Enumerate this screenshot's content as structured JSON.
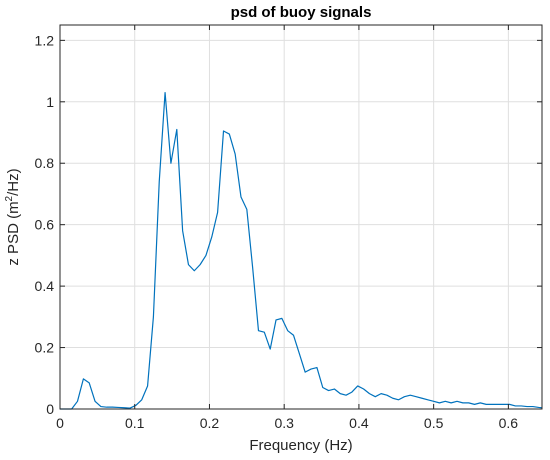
{
  "chart_data": {
    "type": "line",
    "title": "psd of buoy signals",
    "xlabel": "Frequency (Hz)",
    "ylabel": {
      "prefix": "z PSD (m",
      "superscript": "2",
      "suffix": "/Hz)"
    },
    "xlim": [
      0,
      0.645
    ],
    "ylim": [
      0,
      1.25
    ],
    "xticks": [
      0,
      0.1,
      0.2,
      0.3,
      0.4,
      0.5,
      0.6
    ],
    "xtick_labels": [
      "0",
      "0.1",
      "0.2",
      "0.3",
      "0.4",
      "0.5",
      "0.6"
    ],
    "yticks": [
      0,
      0.2,
      0.4,
      0.6,
      0.8,
      1,
      1.2
    ],
    "ytick_labels": [
      "0",
      "0.2",
      "0.4",
      "0.6",
      "0.8",
      "1",
      "1.2"
    ],
    "grid": true,
    "line_color": "#0072BD",
    "series": [
      {
        "x": [
          0,
          0.0078,
          0.0156,
          0.0234,
          0.0313,
          0.0391,
          0.0469,
          0.0547,
          0.0625,
          0.0703,
          0.0781,
          0.0859,
          0.0938,
          0.1016,
          0.1094,
          0.1172,
          0.125,
          0.1328,
          0.1406,
          0.1484,
          0.1563,
          0.1641,
          0.1719,
          0.1797,
          0.1875,
          0.1953,
          0.2031,
          0.2109,
          0.2188,
          0.2266,
          0.2344,
          0.2422,
          0.25,
          0.2578,
          0.2656,
          0.2734,
          0.2813,
          0.2891,
          0.2969,
          0.3047,
          0.3125,
          0.3203,
          0.3281,
          0.3359,
          0.3438,
          0.3516,
          0.3594,
          0.3672,
          0.375,
          0.3828,
          0.3906,
          0.3984,
          0.4063,
          0.4141,
          0.4219,
          0.4297,
          0.4375,
          0.4453,
          0.4531,
          0.4609,
          0.4688,
          0.4766,
          0.4844,
          0.4922,
          0.5,
          0.5078,
          0.5156,
          0.5234,
          0.5313,
          0.5391,
          0.5469,
          0.5547,
          0.5625,
          0.5703,
          0.5781,
          0.5859,
          0.5938,
          0.6016,
          0.6094,
          0.6172,
          0.625,
          0.6328,
          0.6406,
          0.645
        ],
        "y": [
          0,
          0,
          0,
          0.025,
          0.098,
          0.085,
          0.025,
          0.008,
          0.006,
          0.006,
          0.005,
          0.004,
          0.003,
          0.012,
          0.03,
          0.075,
          0.3,
          0.74,
          1.03,
          0.8,
          0.91,
          0.58,
          0.47,
          0.45,
          0.47,
          0.5,
          0.56,
          0.64,
          0.905,
          0.895,
          0.83,
          0.69,
          0.65,
          0.46,
          0.255,
          0.25,
          0.195,
          0.29,
          0.295,
          0.255,
          0.24,
          0.18,
          0.12,
          0.13,
          0.135,
          0.07,
          0.06,
          0.065,
          0.05,
          0.045,
          0.055,
          0.075,
          0.065,
          0.05,
          0.04,
          0.05,
          0.045,
          0.035,
          0.03,
          0.04,
          0.045,
          0.04,
          0.035,
          0.03,
          0.025,
          0.02,
          0.025,
          0.02,
          0.025,
          0.02,
          0.02,
          0.015,
          0.02,
          0.015,
          0.015,
          0.015,
          0.015,
          0.015,
          0.01,
          0.01,
          0.008,
          0.008,
          0.005,
          0.004
        ]
      }
    ]
  }
}
